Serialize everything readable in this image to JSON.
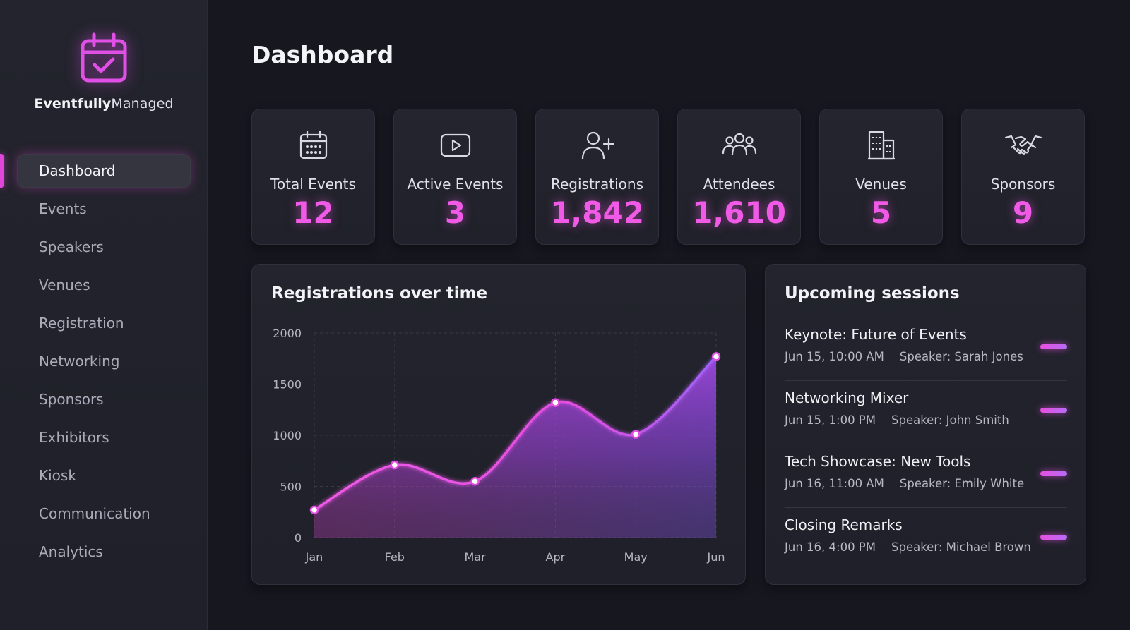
{
  "brand": {
    "name_bold": "Eventfully",
    "name_light": "Managed",
    "logo_icon": "calendar-check-icon"
  },
  "colors": {
    "accent": "#f05ae6",
    "accent_violet": "#9b5cf6",
    "background": "#16171f",
    "sidebar": "#22232c",
    "card": "#23242d"
  },
  "sidebar": {
    "items": [
      {
        "label": "Dashboard",
        "active": true
      },
      {
        "label": "Events"
      },
      {
        "label": "Speakers"
      },
      {
        "label": "Venues"
      },
      {
        "label": "Registration"
      },
      {
        "label": "Networking"
      },
      {
        "label": "Sponsors"
      },
      {
        "label": "Exhibitors"
      },
      {
        "label": "Kiosk"
      },
      {
        "label": "Communication"
      },
      {
        "label": "Analytics"
      }
    ]
  },
  "header": {
    "title": "Dashboard"
  },
  "stats": [
    {
      "label": "Total Events",
      "value": "12",
      "icon": "calendar-grid-icon"
    },
    {
      "label": "Active Events",
      "value": "3",
      "icon": "play-button-icon"
    },
    {
      "label": "Registrations",
      "value": "1,842",
      "icon": "user-plus-icon"
    },
    {
      "label": "Attendees",
      "value": "1,610",
      "icon": "users-group-icon"
    },
    {
      "label": "Venues",
      "value": "5",
      "icon": "building-icon"
    },
    {
      "label": "Sponsors",
      "value": "9",
      "icon": "handshake-icon"
    }
  ],
  "chart_data": {
    "type": "area",
    "title": "Registrations over time",
    "categories": [
      "Jan",
      "Feb",
      "Mar",
      "Apr",
      "May",
      "Jun"
    ],
    "values": [
      270,
      710,
      550,
      1320,
      1010,
      1770
    ],
    "ylim": [
      0,
      2000
    ],
    "yticks": [
      0,
      500,
      1000,
      1500,
      2000
    ],
    "grid": true,
    "smooth": true
  },
  "sessions": {
    "title": "Upcoming sessions",
    "items": [
      {
        "title": "Keynote: Future of Events",
        "time": "Jun 15, 10:00 AM",
        "speaker": "Speaker: Sarah Jones"
      },
      {
        "title": "Networking Mixer",
        "time": "Jun 15, 1:00 PM",
        "speaker": "Speaker: John Smith"
      },
      {
        "title": "Tech Showcase: New Tools",
        "time": "Jun 16, 11:00 AM",
        "speaker": "Speaker: Emily White"
      },
      {
        "title": "Closing Remarks",
        "time": "Jun 16, 4:00 PM",
        "speaker": "Speaker: Michael Brown"
      }
    ]
  }
}
